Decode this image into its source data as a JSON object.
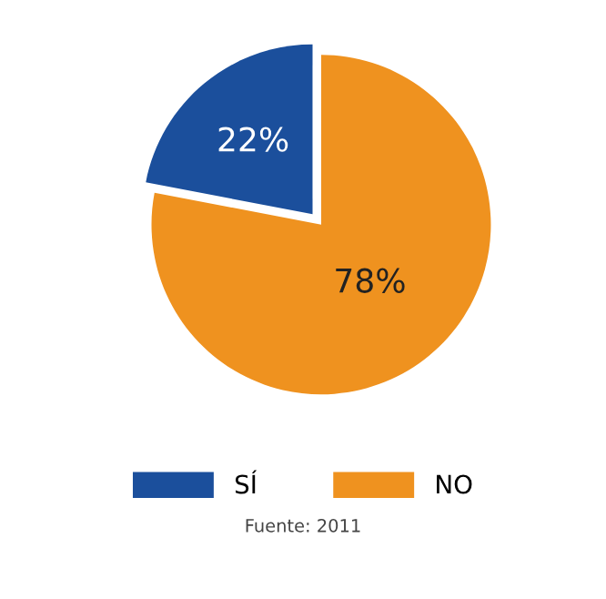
{
  "chart_data": {
    "type": "pie",
    "categories": [
      "SÍ",
      "NO"
    ],
    "values": [
      22,
      78
    ],
    "colors": [
      "#1b4f9c",
      "#ef921f"
    ],
    "value_labels": [
      "22%",
      "78%"
    ],
    "legend": "bottom",
    "annotations": [
      "Fuente: 2011"
    ]
  }
}
